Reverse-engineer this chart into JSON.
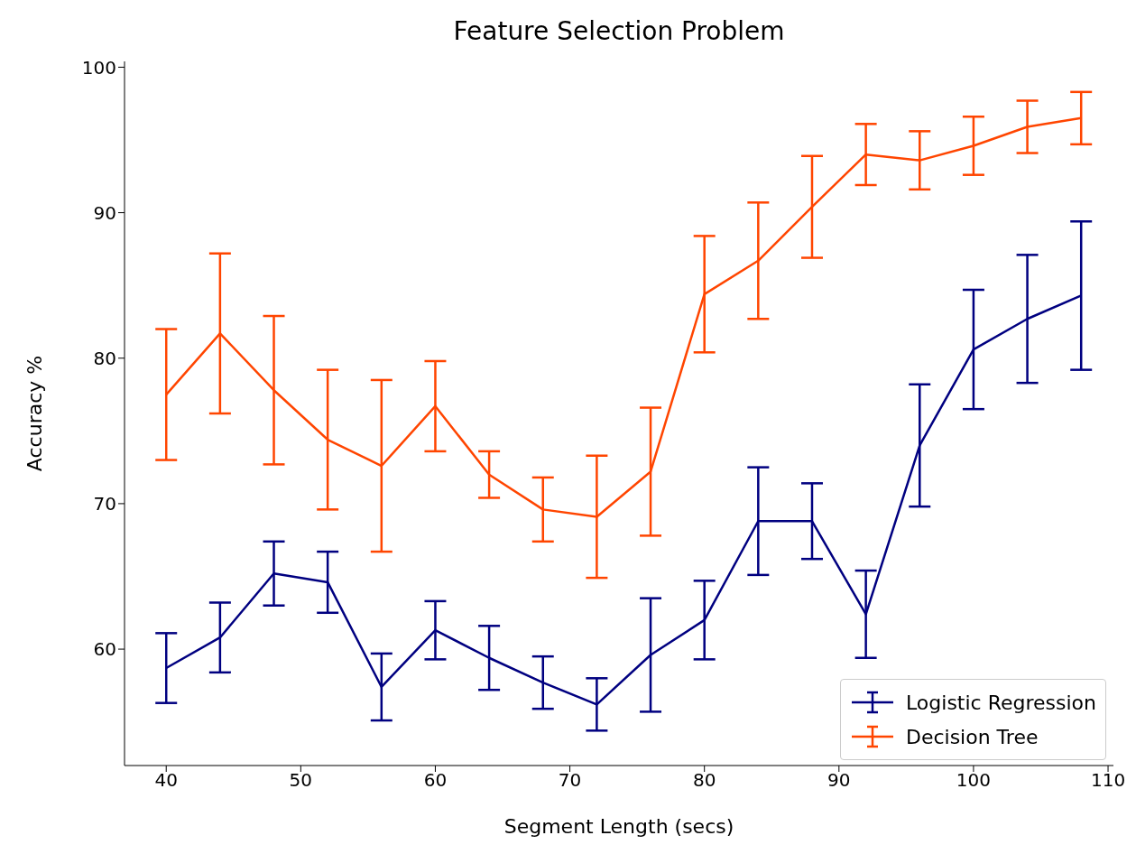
{
  "chart_data": {
    "type": "line",
    "title": "Feature Selection Problem",
    "xlabel": "Segment Length (secs)",
    "ylabel": "Accuracy %",
    "x": [
      40,
      44,
      48,
      52,
      56,
      60,
      64,
      68,
      72,
      76,
      80,
      84,
      88,
      92,
      96,
      100,
      104,
      108
    ],
    "series": [
      {
        "name": "Logistic Regression",
        "color": "#000080",
        "values": [
          58.7,
          60.8,
          65.2,
          64.6,
          57.4,
          61.3,
          59.4,
          57.7,
          56.2,
          59.6,
          62.0,
          68.8,
          68.8,
          62.4,
          74.0,
          80.6,
          82.7,
          84.3
        ],
        "errors": [
          2.4,
          2.4,
          2.2,
          2.1,
          2.3,
          2.0,
          2.2,
          1.8,
          1.8,
          3.9,
          2.7,
          3.7,
          2.6,
          3.0,
          4.2,
          4.1,
          4.4,
          5.1
        ]
      },
      {
        "name": "Decision Tree",
        "color": "#ff4500",
        "values": [
          77.5,
          81.7,
          77.8,
          74.4,
          72.6,
          76.7,
          72.0,
          69.6,
          69.1,
          72.2,
          84.4,
          86.7,
          90.4,
          94.0,
          93.6,
          94.6,
          95.9,
          96.5
        ],
        "errors": [
          4.5,
          5.5,
          5.1,
          4.8,
          5.9,
          3.1,
          1.6,
          2.2,
          4.2,
          4.4,
          4.0,
          4.0,
          3.5,
          2.1,
          2.0,
          2.0,
          1.8,
          1.8
        ]
      }
    ],
    "xlim": [
      36.9,
      110.4
    ],
    "xticks": [
      40,
      50,
      60,
      70,
      80,
      90,
      100,
      110
    ],
    "ylim": [
      52,
      100.4
    ],
    "yticks": [
      60,
      70,
      80,
      90,
      100
    ],
    "grid": false,
    "legend": "bottom right",
    "marker": "none",
    "line_style": "solid"
  }
}
